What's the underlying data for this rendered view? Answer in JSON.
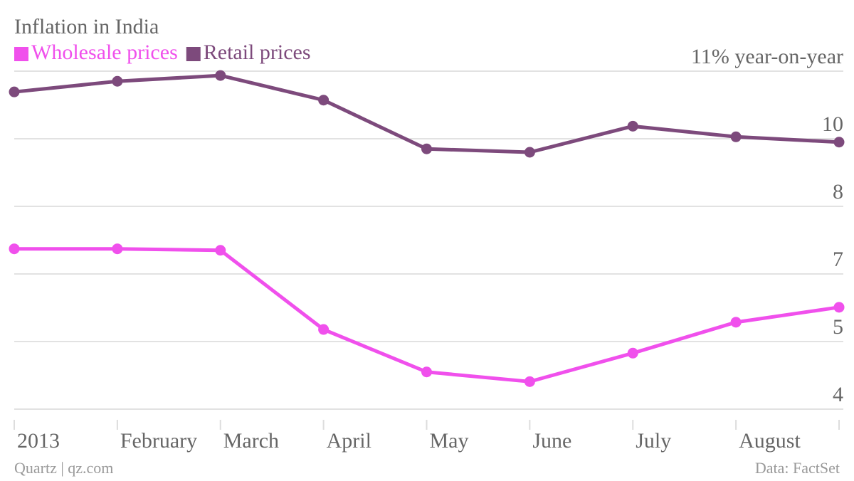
{
  "chart_data": {
    "type": "line",
    "title": "Inflation in India",
    "y_label": "year-on-year",
    "categories": [
      "2013",
      "February",
      "March",
      "April",
      "May",
      "June",
      "July",
      "August",
      null
    ],
    "series": [
      {
        "name": "Wholesale prices",
        "color": "#f050ec",
        "values": [
          7.32,
          7.32,
          7.29,
          5.65,
          4.77,
          4.57,
          5.16,
          5.8,
          6.11
        ]
      },
      {
        "name": "Retail prices",
        "color": "#7d4a7c",
        "values": [
          10.57,
          10.79,
          10.91,
          10.4,
          9.39,
          9.32,
          9.86,
          9.64,
          9.53
        ]
      }
    ],
    "ylim": [
      4,
      11
    ],
    "yticks": [
      4,
      {
        "value": 5.4,
        "label": "5"
      },
      {
        "value": 6.8,
        "label": "7"
      },
      {
        "value": 8.2,
        "label": "8"
      },
      {
        "value": 9.6,
        "label": "10"
      },
      {
        "value": 11,
        "label": "11%"
      }
    ],
    "grid": true,
    "source": "Data: FactSet",
    "credit": "Quartz | qz.com"
  }
}
